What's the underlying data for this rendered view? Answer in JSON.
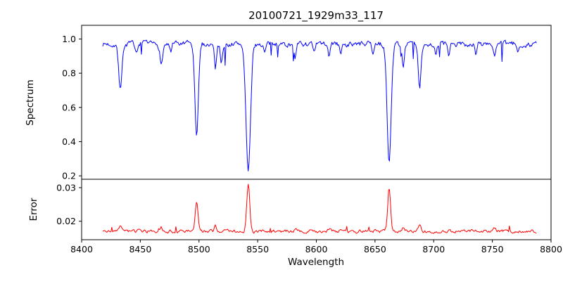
{
  "chart_data": {
    "type": "line",
    "title": "20100721_1929m33_117",
    "xlabel": "Wavelength",
    "x_range": [
      8400,
      8800
    ],
    "x_data_range": [
      8418,
      8788
    ],
    "x_ticks": [
      8400,
      8450,
      8500,
      8550,
      8600,
      8650,
      8700,
      8750,
      8800
    ],
    "x_tick_labels": [
      "8400",
      "8450",
      "8500",
      "8550",
      "8600",
      "8650",
      "8700",
      "8750",
      "8800"
    ],
    "grid": false,
    "legend": "none",
    "panels": [
      {
        "name": "spectrum",
        "ylabel": "Spectrum",
        "color": "#0000ff",
        "ylim": [
          0.18,
          1.08
        ],
        "yticks": [
          0.2,
          0.4,
          0.6,
          0.8,
          1.0
        ],
        "ytick_labels": [
          "0.2",
          "0.4",
          "0.6",
          "0.8",
          "1.0"
        ],
        "continuum": 0.97,
        "noise": 0.013,
        "spike_prob": 0.045,
        "spike_amp": 0.11,
        "seed": 7,
        "features": [
          [
            8433,
            -0.26,
            1.4
          ],
          [
            8447,
            -0.06,
            1.0
          ],
          [
            8468,
            -0.11,
            1.2
          ],
          [
            8476,
            -0.05,
            0.9
          ],
          [
            8498,
            -0.53,
            1.5
          ],
          [
            8514,
            -0.14,
            0.9
          ],
          [
            8519,
            -0.1,
            0.9
          ],
          [
            8542,
            -0.75,
            1.9
          ],
          [
            8556,
            -0.05,
            0.9
          ],
          [
            8582,
            -0.07,
            0.9
          ],
          [
            8598,
            -0.06,
            0.9
          ],
          [
            8611,
            -0.07,
            0.9
          ],
          [
            8621,
            -0.05,
            0.8
          ],
          [
            8648,
            -0.05,
            0.8
          ],
          [
            8662,
            -0.7,
            1.7
          ],
          [
            8674,
            -0.12,
            0.9
          ],
          [
            8688,
            -0.25,
            1.2
          ],
          [
            8702,
            -0.06,
            0.8
          ],
          [
            8713,
            -0.08,
            0.9
          ],
          [
            8736,
            -0.06,
            0.8
          ],
          [
            8752,
            -0.07,
            0.9
          ],
          [
            8772,
            -0.05,
            0.8
          ]
        ]
      },
      {
        "name": "error",
        "ylabel": "Error",
        "color": "#ff0000",
        "ylim": [
          0.0145,
          0.0325
        ],
        "yticks": [
          0.02,
          0.03
        ],
        "ytick_labels": [
          "0.02",
          "0.03"
        ],
        "continuum": 0.017,
        "noise": 0.0004,
        "spike_prob": 0.03,
        "spike_amp": -0.0014,
        "seed": 3,
        "features": [
          [
            8433,
            0.0018,
            1.2
          ],
          [
            8468,
            0.001,
            1.0
          ],
          [
            8498,
            0.009,
            1.1
          ],
          [
            8514,
            0.0018,
            0.9
          ],
          [
            8542,
            0.014,
            1.3
          ],
          [
            8582,
            0.0006,
            0.8
          ],
          [
            8611,
            0.0006,
            0.8
          ],
          [
            8662,
            0.013,
            1.2
          ],
          [
            8674,
            0.0012,
            0.8
          ],
          [
            8688,
            0.002,
            1.0
          ],
          [
            8713,
            0.0008,
            0.8
          ],
          [
            8752,
            0.0008,
            0.8
          ]
        ]
      }
    ]
  }
}
